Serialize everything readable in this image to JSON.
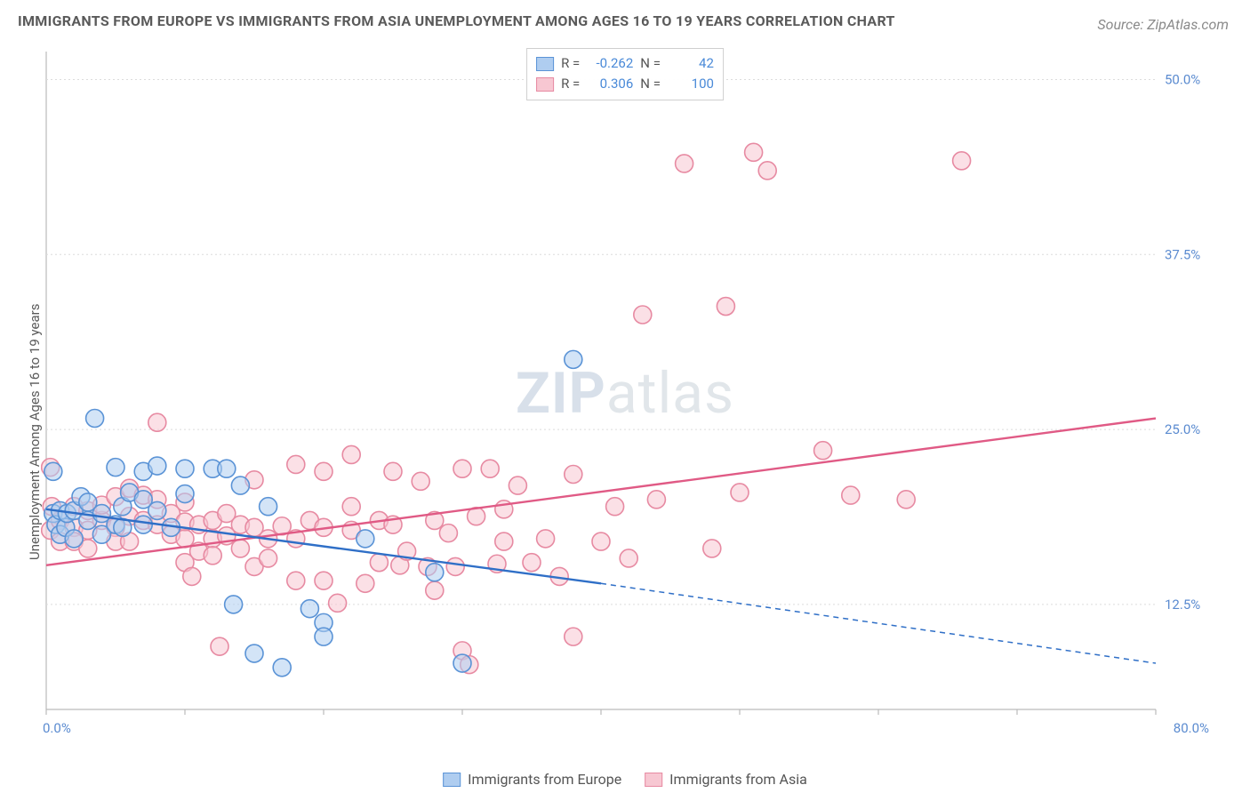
{
  "title": "IMMIGRANTS FROM EUROPE VS IMMIGRANTS FROM ASIA UNEMPLOYMENT AMONG AGES 16 TO 19 YEARS CORRELATION CHART",
  "title_fontsize": 16,
  "source_label": "Source:",
  "source_value": "ZipAtlas.com",
  "y_axis_label": "Unemployment Among Ages 16 to 19 years",
  "axis_label_fontsize": 15,
  "watermark_a": "ZIP",
  "watermark_b": "atlas",
  "stats": [
    {
      "r_label": "R =",
      "r": "-0.262",
      "n_label": "N =",
      "n": "42"
    },
    {
      "r_label": "R =",
      "r": "0.306",
      "n_label": "N =",
      "n": "100"
    }
  ],
  "stats_value_color": "#4a8ad8",
  "legend": {
    "series_a": "Immigrants from Europe",
    "series_b": "Immigrants from Asia"
  },
  "colors": {
    "europe_fill": "#afcdf0",
    "europe_stroke": "#5a93d6",
    "europe_line": "#2f6fc7",
    "asia_fill": "#f7c7d2",
    "asia_stroke": "#e78aa2",
    "asia_line": "#e05a85",
    "grid": "#dcdcdc",
    "axis": "#bababa",
    "tick_label": "#5b8bd0",
    "text_muted": "#8a8a8a"
  },
  "chart": {
    "type": "scatter",
    "xlim": [
      0,
      80
    ],
    "ylim": [
      5,
      52
    ],
    "x_ticks": [
      0,
      10,
      20,
      30,
      40,
      50,
      60,
      70,
      80
    ],
    "x_tick_labels": {
      "0": "0.0%",
      "80": "80.0%"
    },
    "y_grid": [
      12.5,
      25,
      37.5,
      50
    ],
    "y_tick_labels": {
      "12.5": "12.5%",
      "25": "25.0%",
      "37.5": "37.5%",
      "50": "50.0%"
    },
    "marker_radius": 10,
    "marker_stroke_width": 1.6,
    "marker_fill_opacity": 0.55,
    "line_width": 2.4,
    "europe_line": {
      "x0": 0,
      "y0": 19.3,
      "x1_solid": 40,
      "y1_solid": 14.0,
      "x1": 80,
      "y1": 8.3
    },
    "asia_line": {
      "x0": 0,
      "y0": 15.3,
      "x1": 80,
      "y1": 25.8
    },
    "europe_points": [
      {
        "x": 0.5,
        "y": 19
      },
      {
        "x": 0.7,
        "y": 18.2
      },
      {
        "x": 0.5,
        "y": 22
      },
      {
        "x": 1,
        "y": 17.5
      },
      {
        "x": 1,
        "y": 19.2
      },
      {
        "x": 1.4,
        "y": 18
      },
      {
        "x": 1.5,
        "y": 19
      },
      {
        "x": 2,
        "y": 17.2
      },
      {
        "x": 2,
        "y": 19.2
      },
      {
        "x": 2.5,
        "y": 20.2
      },
      {
        "x": 3,
        "y": 18.5
      },
      {
        "x": 3,
        "y": 19.8
      },
      {
        "x": 3.5,
        "y": 25.8
      },
      {
        "x": 4,
        "y": 19
      },
      {
        "x": 4,
        "y": 17.5
      },
      {
        "x": 5,
        "y": 18.2
      },
      {
        "x": 5,
        "y": 22.3
      },
      {
        "x": 5.5,
        "y": 18
      },
      {
        "x": 5.5,
        "y": 19.5
      },
      {
        "x": 6,
        "y": 20.5
      },
      {
        "x": 7,
        "y": 22
      },
      {
        "x": 7,
        "y": 18.2
      },
      {
        "x": 7,
        "y": 20
      },
      {
        "x": 8,
        "y": 22.4
      },
      {
        "x": 8,
        "y": 19.2
      },
      {
        "x": 9,
        "y": 18
      },
      {
        "x": 10,
        "y": 22.2
      },
      {
        "x": 10,
        "y": 20.4
      },
      {
        "x": 12,
        "y": 22.2
      },
      {
        "x": 13,
        "y": 22.2
      },
      {
        "x": 14,
        "y": 21
      },
      {
        "x": 13.5,
        "y": 12.5
      },
      {
        "x": 15,
        "y": 9.0
      },
      {
        "x": 16,
        "y": 19.5
      },
      {
        "x": 17,
        "y": 8.0
      },
      {
        "x": 19,
        "y": 12.2
      },
      {
        "x": 20,
        "y": 11.2
      },
      {
        "x": 20,
        "y": 10.2
      },
      {
        "x": 23,
        "y": 17.2
      },
      {
        "x": 28,
        "y": 14.8
      },
      {
        "x": 30,
        "y": 8.3
      },
      {
        "x": 38,
        "y": 30.0
      }
    ],
    "asia_points": [
      {
        "x": 0.3,
        "y": 17.8
      },
      {
        "x": 0.4,
        "y": 19.5
      },
      {
        "x": 0.3,
        "y": 22.3
      },
      {
        "x": 1,
        "y": 18.5
      },
      {
        "x": 1,
        "y": 17
      },
      {
        "x": 2,
        "y": 19.5
      },
      {
        "x": 2,
        "y": 18
      },
      {
        "x": 2,
        "y": 17
      },
      {
        "x": 3,
        "y": 17.8
      },
      {
        "x": 3,
        "y": 19.2
      },
      {
        "x": 3,
        "y": 16.5
      },
      {
        "x": 4,
        "y": 18.5
      },
      {
        "x": 4,
        "y": 19.6
      },
      {
        "x": 5,
        "y": 20.2
      },
      {
        "x": 5,
        "y": 18
      },
      {
        "x": 5,
        "y": 17
      },
      {
        "x": 6,
        "y": 20.8
      },
      {
        "x": 6,
        "y": 18.8
      },
      {
        "x": 6,
        "y": 17
      },
      {
        "x": 7,
        "y": 20.3
      },
      {
        "x": 7,
        "y": 18.5
      },
      {
        "x": 8,
        "y": 25.5
      },
      {
        "x": 8,
        "y": 20
      },
      {
        "x": 8,
        "y": 18.2
      },
      {
        "x": 9,
        "y": 19
      },
      {
        "x": 9,
        "y": 17.5
      },
      {
        "x": 10,
        "y": 19.8
      },
      {
        "x": 10,
        "y": 18.4
      },
      {
        "x": 10,
        "y": 17.2
      },
      {
        "x": 10,
        "y": 15.5
      },
      {
        "x": 10.5,
        "y": 14.5
      },
      {
        "x": 11,
        "y": 18.2
      },
      {
        "x": 11,
        "y": 16.3
      },
      {
        "x": 12,
        "y": 18.5
      },
      {
        "x": 12,
        "y": 17.2
      },
      {
        "x": 12,
        "y": 16
      },
      {
        "x": 12.5,
        "y": 9.5
      },
      {
        "x": 13,
        "y": 19
      },
      {
        "x": 13,
        "y": 17.4
      },
      {
        "x": 14,
        "y": 18.2
      },
      {
        "x": 14,
        "y": 16.5
      },
      {
        "x": 15,
        "y": 21.4
      },
      {
        "x": 15,
        "y": 18
      },
      {
        "x": 15,
        "y": 15.2
      },
      {
        "x": 16,
        "y": 17.2
      },
      {
        "x": 16,
        "y": 15.8
      },
      {
        "x": 17,
        "y": 18.1
      },
      {
        "x": 18,
        "y": 22.5
      },
      {
        "x": 18,
        "y": 17.2
      },
      {
        "x": 18,
        "y": 14.2
      },
      {
        "x": 19,
        "y": 18.5
      },
      {
        "x": 20,
        "y": 22
      },
      {
        "x": 20,
        "y": 18
      },
      {
        "x": 20,
        "y": 14.2
      },
      {
        "x": 21,
        "y": 12.6
      },
      {
        "x": 22,
        "y": 23.2
      },
      {
        "x": 22,
        "y": 19.5
      },
      {
        "x": 22,
        "y": 17.8
      },
      {
        "x": 23,
        "y": 14
      },
      {
        "x": 24,
        "y": 18.5
      },
      {
        "x": 24,
        "y": 15.5
      },
      {
        "x": 25,
        "y": 22
      },
      {
        "x": 25,
        "y": 18.2
      },
      {
        "x": 25.5,
        "y": 15.3
      },
      {
        "x": 26,
        "y": 16.3
      },
      {
        "x": 27,
        "y": 21.3
      },
      {
        "x": 27.5,
        "y": 15.2
      },
      {
        "x": 28,
        "y": 18.5
      },
      {
        "x": 28,
        "y": 13.5
      },
      {
        "x": 29,
        "y": 17.6
      },
      {
        "x": 29.5,
        "y": 15.2
      },
      {
        "x": 30,
        "y": 22.2
      },
      {
        "x": 30,
        "y": 9.2
      },
      {
        "x": 30.5,
        "y": 8.2
      },
      {
        "x": 31,
        "y": 18.8
      },
      {
        "x": 32,
        "y": 22.2
      },
      {
        "x": 32.5,
        "y": 15.4
      },
      {
        "x": 33,
        "y": 19.3
      },
      {
        "x": 33,
        "y": 17
      },
      {
        "x": 34,
        "y": 21
      },
      {
        "x": 35,
        "y": 15.5
      },
      {
        "x": 36,
        "y": 17.2
      },
      {
        "x": 37,
        "y": 14.5
      },
      {
        "x": 38,
        "y": 21.8
      },
      {
        "x": 38,
        "y": 10.2
      },
      {
        "x": 40,
        "y": 17
      },
      {
        "x": 41,
        "y": 19.5
      },
      {
        "x": 42,
        "y": 15.8
      },
      {
        "x": 43,
        "y": 33.2
      },
      {
        "x": 44,
        "y": 20
      },
      {
        "x": 46,
        "y": 44.0
      },
      {
        "x": 48,
        "y": 16.5
      },
      {
        "x": 49,
        "y": 33.8
      },
      {
        "x": 50,
        "y": 20.5
      },
      {
        "x": 51,
        "y": 44.8
      },
      {
        "x": 52,
        "y": 43.5
      },
      {
        "x": 56,
        "y": 23.5
      },
      {
        "x": 58,
        "y": 20.3
      },
      {
        "x": 62,
        "y": 20
      },
      {
        "x": 66,
        "y": 44.2
      }
    ]
  }
}
